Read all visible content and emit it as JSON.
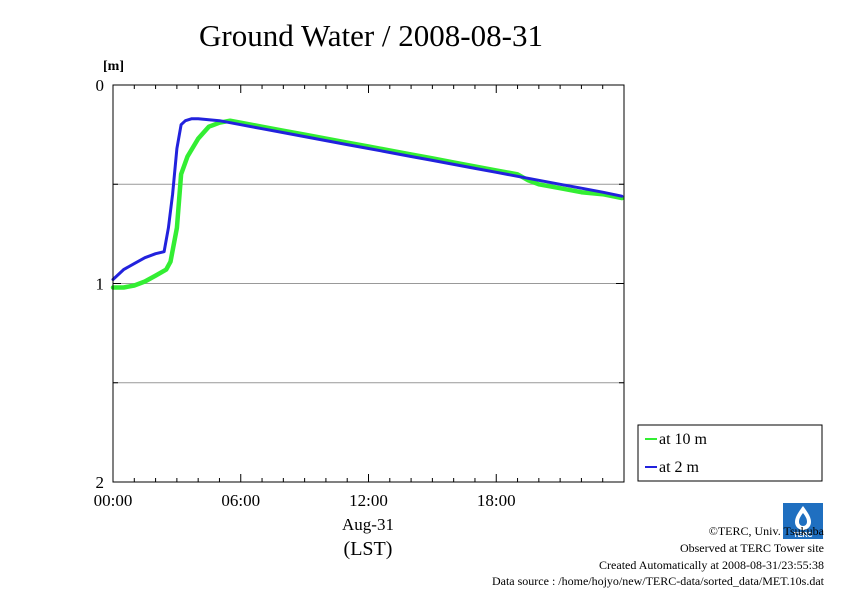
{
  "chart_data": {
    "type": "line",
    "title": "Ground Water / 2008-08-31",
    "y_unit": "[m]",
    "ylim": [
      0,
      2
    ],
    "y_inverted": true,
    "y_ticks": [
      {
        "value": 0,
        "label": "0"
      },
      {
        "value": 1,
        "label": "1"
      },
      {
        "value": 2,
        "label": "2"
      }
    ],
    "y_gridlines": [
      0.5,
      1.0,
      1.5
    ],
    "xlim": [
      0,
      24
    ],
    "x_ticks": [
      {
        "value": 0,
        "label": "00:00"
      },
      {
        "value": 6,
        "label": "06:00"
      },
      {
        "value": 12,
        "label": "12:00"
      },
      {
        "value": 18,
        "label": "18:00"
      }
    ],
    "x_date_label": "Aug-31",
    "xlabel": "(LST)",
    "legend_position": "right-bottom",
    "series": [
      {
        "name": "at 10 m",
        "color": "#33ee33",
        "x": [
          0,
          0.5,
          1.0,
          1.5,
          2.0,
          2.5,
          2.7,
          3.0,
          3.2,
          3.5,
          4.0,
          4.5,
          5.0,
          5.5,
          6.0,
          7.0,
          8.0,
          9.0,
          10.0,
          11.0,
          12.0,
          13.0,
          14.0,
          15.0,
          16.0,
          17.0,
          18.0,
          19.0,
          19.5,
          20.0,
          21.0,
          22.0,
          23.0,
          23.9
        ],
        "y": [
          1.02,
          1.02,
          1.01,
          0.99,
          0.96,
          0.93,
          0.89,
          0.72,
          0.45,
          0.36,
          0.27,
          0.21,
          0.19,
          0.18,
          0.19,
          0.21,
          0.23,
          0.25,
          0.27,
          0.29,
          0.31,
          0.33,
          0.35,
          0.37,
          0.39,
          0.41,
          0.43,
          0.45,
          0.48,
          0.5,
          0.52,
          0.54,
          0.55,
          0.57
        ]
      },
      {
        "name": "at 2 m",
        "color": "#2222dd",
        "x": [
          0,
          0.5,
          1.0,
          1.5,
          2.0,
          2.4,
          2.6,
          2.8,
          3.0,
          3.2,
          3.4,
          3.7,
          4.0,
          5.0,
          6.0,
          7.0,
          8.0,
          9.0,
          10.0,
          11.0,
          12.0,
          13.0,
          14.0,
          15.0,
          16.0,
          17.0,
          18.0,
          19.0,
          20.0,
          21.0,
          22.0,
          23.0,
          23.9
        ],
        "y": [
          0.98,
          0.93,
          0.9,
          0.87,
          0.85,
          0.84,
          0.72,
          0.55,
          0.32,
          0.2,
          0.18,
          0.17,
          0.17,
          0.18,
          0.2,
          0.22,
          0.24,
          0.26,
          0.28,
          0.3,
          0.32,
          0.34,
          0.36,
          0.38,
          0.4,
          0.42,
          0.44,
          0.46,
          0.48,
          0.5,
          0.52,
          0.54,
          0.56
        ]
      }
    ]
  },
  "credits": {
    "copyright": "©TERC, Univ. Tsukuba",
    "observed": "Observed at TERC Tower site",
    "created": "Created Automatically at 2008-08-31/23:55:38",
    "source": "Data source : /home/hojyo/new/TERC-data/sorted_data/MET.10s.dat",
    "logo_text": "TERC"
  }
}
